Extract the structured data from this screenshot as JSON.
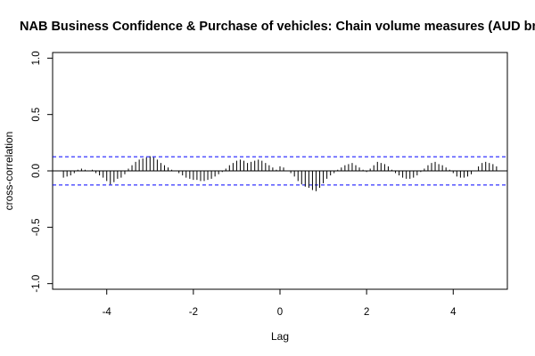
{
  "chart_data": {
    "type": "bar",
    "title": "NAB Business Confidence & Purchase of vehicles: Chain volume measures (AUD bn)",
    "xlabel": "Lag",
    "ylabel": "cross-correlation",
    "xlim": [
      -5.25,
      5.25
    ],
    "ylim": [
      -1.05,
      1.05
    ],
    "x_ticks": [
      -4,
      -2,
      0,
      2,
      4
    ],
    "x_tick_labels": [
      "-4",
      "-2",
      "0",
      "2",
      "4"
    ],
    "y_ticks": [
      -1.0,
      -0.5,
      0.0,
      0.5,
      1.0
    ],
    "y_tick_labels": [
      "-1.0",
      "-0.5",
      "0.0",
      "0.5",
      "1.0"
    ],
    "confidence_band": 0.125,
    "grid": false,
    "colors": {
      "bars": "#000000",
      "band": "#0000ff",
      "zero_line": "#000000"
    },
    "x": [
      -5.0,
      -4.917,
      -4.833,
      -4.75,
      -4.667,
      -4.583,
      -4.5,
      -4.417,
      -4.333,
      -4.25,
      -4.167,
      -4.083,
      -4.0,
      -3.917,
      -3.833,
      -3.75,
      -3.667,
      -3.583,
      -3.5,
      -3.417,
      -3.333,
      -3.25,
      -3.167,
      -3.083,
      -3.0,
      -2.917,
      -2.833,
      -2.75,
      -2.667,
      -2.583,
      -2.5,
      -2.417,
      -2.333,
      -2.25,
      -2.167,
      -2.083,
      -2.0,
      -1.917,
      -1.833,
      -1.75,
      -1.667,
      -1.583,
      -1.5,
      -1.417,
      -1.333,
      -1.25,
      -1.167,
      -1.083,
      -1.0,
      -0.917,
      -0.833,
      -0.75,
      -0.667,
      -0.583,
      -0.5,
      -0.417,
      -0.333,
      -0.25,
      -0.167,
      -0.083,
      0.0,
      0.083,
      0.167,
      0.25,
      0.333,
      0.417,
      0.5,
      0.583,
      0.667,
      0.75,
      0.833,
      0.917,
      1.0,
      1.083,
      1.167,
      1.25,
      1.333,
      1.417,
      1.5,
      1.583,
      1.667,
      1.75,
      1.833,
      1.917,
      2.0,
      2.083,
      2.167,
      2.25,
      2.333,
      2.417,
      2.5,
      2.583,
      2.667,
      2.75,
      2.833,
      2.917,
      3.0,
      3.083,
      3.167,
      3.25,
      3.333,
      3.417,
      3.5,
      3.583,
      3.667,
      3.75,
      3.833,
      3.917,
      4.0,
      4.083,
      4.167,
      4.25,
      4.333,
      4.417,
      4.5,
      4.583,
      4.667,
      4.75,
      4.833,
      4.917,
      5.0
    ],
    "values": [
      -0.06,
      -0.05,
      -0.04,
      -0.02,
      0.01,
      0.02,
      0.01,
      0.0,
      0.01,
      -0.02,
      -0.04,
      -0.06,
      -0.09,
      -0.12,
      -0.1,
      -0.07,
      -0.06,
      -0.03,
      0.02,
      0.05,
      0.08,
      0.1,
      0.11,
      0.12,
      0.13,
      0.12,
      0.1,
      0.07,
      0.05,
      0.03,
      0.01,
      0.0,
      -0.02,
      -0.04,
      -0.06,
      -0.07,
      -0.08,
      -0.08,
      -0.09,
      -0.09,
      -0.08,
      -0.07,
      -0.05,
      -0.03,
      -0.01,
      0.02,
      0.05,
      0.07,
      0.09,
      0.1,
      0.09,
      0.07,
      0.08,
      0.09,
      0.1,
      0.09,
      0.07,
      0.05,
      0.03,
      0.01,
      0.04,
      0.03,
      0.0,
      -0.02,
      -0.05,
      -0.09,
      -0.12,
      -0.14,
      -0.15,
      -0.17,
      -0.18,
      -0.15,
      -0.11,
      -0.07,
      -0.04,
      -0.02,
      0.01,
      0.03,
      0.05,
      0.06,
      0.07,
      0.05,
      0.03,
      0.01,
      -0.01,
      0.02,
      0.05,
      0.08,
      0.07,
      0.06,
      0.04,
      0.01,
      -0.02,
      -0.04,
      -0.06,
      -0.07,
      -0.07,
      -0.06,
      -0.04,
      -0.01,
      0.02,
      0.05,
      0.07,
      0.08,
      0.06,
      0.05,
      0.03,
      0.01,
      -0.02,
      -0.05,
      -0.06,
      -0.06,
      -0.05,
      -0.03,
      0.0,
      0.04,
      0.07,
      0.08,
      0.07,
      0.06,
      0.04
    ]
  }
}
